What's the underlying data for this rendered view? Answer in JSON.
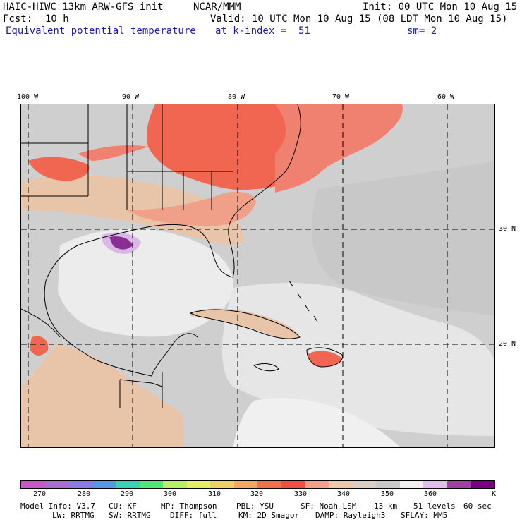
{
  "header": {
    "line1_left": "HAIC-HIWC 13km ARW-GFS init",
    "line1_center": "NCAR/MMM",
    "line1_right": "Init: 00 UTC Mon 10 Aug 15",
    "forecast_label": "Fcst:",
    "forecast_value": "10 h",
    "valid": "Valid: 10 UTC Mon 10 Aug 15 (08 LDT Mon 10 Aug 15)",
    "field_name": "Equivalent potential temperature",
    "level": "at k-index =  51",
    "smoothing": "sm= 2"
  },
  "map": {
    "longitude_labels": [
      "100 W",
      "90 W",
      "80 W",
      "70 W",
      "60 W"
    ],
    "latitude_labels": [
      "30 N",
      "20 N"
    ]
  },
  "colorbar": {
    "ticks": [
      "270",
      "280",
      "290",
      "300",
      "310",
      "320",
      "330",
      "340",
      "350",
      "360"
    ],
    "unit": "K",
    "colors": [
      "#c857c8",
      "#a870cc",
      "#8c7be6",
      "#5a96e6",
      "#38d2b4",
      "#50e678",
      "#b4f064",
      "#e6f064",
      "#f0d064",
      "#f0a864",
      "#f07050",
      "#f05046",
      "#f0a088",
      "#f0c8a8",
      "#d8d0c8",
      "#c8c8c8",
      "#f0f0f0",
      "#e0c0e8",
      "#a040a0",
      "#780080"
    ]
  },
  "footer": {
    "line1": [
      "Model Info: V3.7",
      "CU: KF",
      "MP: Thompson",
      "PBL: YSU",
      "SF: Noah LSM",
      "13 km",
      "51 levels",
      "60 sec"
    ],
    "line2": [
      "LW: RRTMG",
      "SW: RRTMG",
      "DIFF: full",
      "KM: 2D Smagor",
      "DAMP: Rayleigh3",
      "SFLAY: MM5"
    ]
  }
}
